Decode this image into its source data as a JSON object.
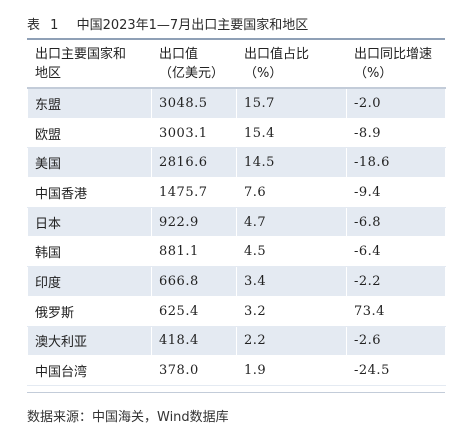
{
  "caption": {
    "label": "表",
    "number": "1",
    "title": "中国2023年1—7月出口主要国家和地区"
  },
  "table": {
    "headers": [
      [
        "出口主要国家和",
        "地区"
      ],
      [
        "出口值",
        "（亿美元）"
      ],
      [
        "出口值占比",
        "（%）"
      ],
      [
        "出口同比增速",
        "（%）"
      ]
    ],
    "rows": [
      [
        "东盟",
        "3048.5",
        "15.7",
        "-2.0"
      ],
      [
        "欧盟",
        "3003.1",
        "15.4",
        "-8.9"
      ],
      [
        "美国",
        "2816.6",
        "14.5",
        "-18.6"
      ],
      [
        "中国香港",
        "1475.7",
        "7.6",
        "-9.4"
      ],
      [
        "日本",
        "922.9",
        "4.7",
        "-6.8"
      ],
      [
        "韩国",
        "881.1",
        "4.5",
        "-6.4"
      ],
      [
        "印度",
        "666.8",
        "3.4",
        "-2.2"
      ],
      [
        "俄罗斯",
        "625.4",
        "3.2",
        "73.4"
      ],
      [
        "澳大利亚",
        "418.4",
        "2.2",
        "-2.6"
      ],
      [
        "中国台湾",
        "378.0",
        "1.9",
        "-24.5"
      ]
    ]
  },
  "source": "数据来源：中国海关，Wind数据库"
}
